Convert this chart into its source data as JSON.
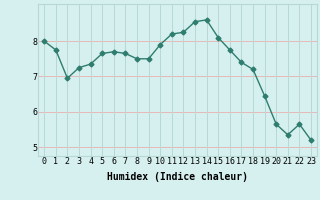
{
  "x": [
    0,
    1,
    2,
    3,
    4,
    5,
    6,
    7,
    8,
    9,
    10,
    11,
    12,
    13,
    14,
    15,
    16,
    17,
    18,
    19,
    20,
    21,
    22,
    23
  ],
  "y": [
    8.0,
    7.75,
    6.95,
    7.25,
    7.35,
    7.65,
    7.7,
    7.65,
    7.5,
    7.5,
    7.9,
    8.2,
    8.25,
    8.55,
    8.6,
    8.1,
    7.75,
    7.4,
    7.2,
    6.45,
    5.65,
    5.35,
    5.65,
    5.2
  ],
  "line_color": "#2e7d6e",
  "marker": "D",
  "bg_color": "#d6f0ef",
  "grid_color_v": "#b8d8d5",
  "grid_color_h": "#e8b8b8",
  "xlabel": "Humidex (Indice chaleur)",
  "xlim": [
    -0.5,
    23.5
  ],
  "ylim": [
    4.75,
    9.05
  ],
  "yticks": [
    5,
    6,
    7,
    8
  ],
  "xticks": [
    0,
    1,
    2,
    3,
    4,
    5,
    6,
    7,
    8,
    9,
    10,
    11,
    12,
    13,
    14,
    15,
    16,
    17,
    18,
    19,
    20,
    21,
    22,
    23
  ],
  "xlabel_fontsize": 7,
  "tick_fontsize": 6,
  "line_width": 1.0,
  "marker_size": 2.5
}
